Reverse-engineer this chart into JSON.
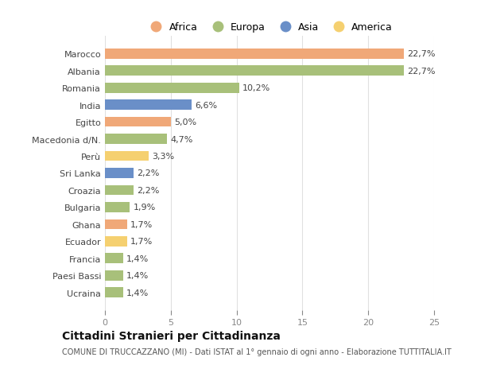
{
  "categories": [
    "Marocco",
    "Albania",
    "Romania",
    "India",
    "Egitto",
    "Macedonia d/N.",
    "Perù",
    "Sri Lanka",
    "Croazia",
    "Bulgaria",
    "Ghana",
    "Ecuador",
    "Francia",
    "Paesi Bassi",
    "Ucraina"
  ],
  "values": [
    22.7,
    22.7,
    10.2,
    6.6,
    5.0,
    4.7,
    3.3,
    2.2,
    2.2,
    1.9,
    1.7,
    1.7,
    1.4,
    1.4,
    1.4
  ],
  "labels": [
    "22,7%",
    "22,7%",
    "10,2%",
    "6,6%",
    "5,0%",
    "4,7%",
    "3,3%",
    "2,2%",
    "2,2%",
    "1,9%",
    "1,7%",
    "1,7%",
    "1,4%",
    "1,4%",
    "1,4%"
  ],
  "continent": [
    "Africa",
    "Europa",
    "Europa",
    "Asia",
    "Africa",
    "Europa",
    "America",
    "Asia",
    "Europa",
    "Europa",
    "Africa",
    "America",
    "Europa",
    "Europa",
    "Europa"
  ],
  "colors": {
    "Africa": "#F0A878",
    "Europa": "#A8C07A",
    "Asia": "#6A8FC8",
    "America": "#F5D070"
  },
  "legend_order": [
    "Africa",
    "Europa",
    "Asia",
    "America"
  ],
  "title": "Cittadini Stranieri per Cittadinanza",
  "subtitle": "COMUNE DI TRUCCAZZANO (MI) - Dati ISTAT al 1° gennaio di ogni anno - Elaborazione TUTTITALIA.IT",
  "xlim": [
    0,
    25
  ],
  "xticks": [
    0,
    5,
    10,
    15,
    20,
    25
  ],
  "background_color": "#ffffff",
  "grid_color": "#e0e0e0",
  "title_fontsize": 10,
  "subtitle_fontsize": 7,
  "label_fontsize": 8,
  "tick_fontsize": 8,
  "legend_fontsize": 9
}
